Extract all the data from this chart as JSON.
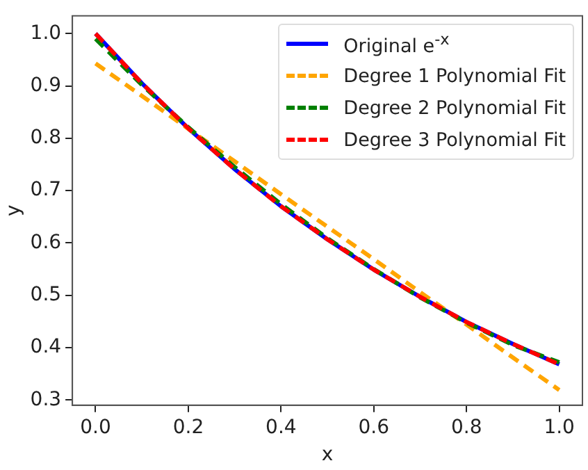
{
  "chart_data": {
    "type": "line",
    "xlabel": "x",
    "ylabel": "y",
    "x": [
      0,
      0.1,
      0.2,
      0.3,
      0.4,
      0.5,
      0.6,
      0.7,
      0.8,
      0.9,
      1.0
    ],
    "series": [
      {
        "name": "Original e$^{-x}$",
        "color": "#0000ff",
        "line_style": "solid",
        "values": [
          1.0,
          0.905,
          0.819,
          0.741,
          0.67,
          0.607,
          0.549,
          0.497,
          0.449,
          0.407,
          0.368
        ]
      },
      {
        "name": "Degree 1 Polynomial Fit",
        "color": "#ffa500",
        "line_style": "dashed",
        "values": [
          0.943,
          0.881,
          0.818,
          0.756,
          0.693,
          0.631,
          0.569,
          0.506,
          0.444,
          0.381,
          0.319
        ]
      },
      {
        "name": "Degree 2 Polynomial Fit",
        "color": "#008000",
        "line_style": "dashed",
        "values": [
          0.99,
          0.902,
          0.821,
          0.745,
          0.674,
          0.609,
          0.55,
          0.496,
          0.448,
          0.405,
          0.372
        ]
      },
      {
        "name": "Degree 3 Polynomial Fit",
        "color": "#ff0000",
        "line_style": "dashed",
        "values": [
          1.0,
          0.905,
          0.819,
          0.741,
          0.67,
          0.607,
          0.549,
          0.497,
          0.449,
          0.407,
          0.368
        ]
      }
    ],
    "xlim": [
      -0.05,
      1.05
    ],
    "xticks": [
      {
        "value": 0,
        "label": "0.0"
      },
      {
        "value": 0.2,
        "label": "0.2"
      },
      {
        "value": 0.4,
        "label": "0.4"
      },
      {
        "value": 0.6,
        "label": "0.6"
      },
      {
        "value": 0.8,
        "label": "0.8"
      },
      {
        "value": 1,
        "label": "1.0"
      }
    ],
    "ylim": [
      0.29,
      1.034
    ],
    "yticks": [
      {
        "value": 0.3,
        "label": "0.3"
      },
      {
        "value": 0.4,
        "label": "0.4"
      },
      {
        "value": 0.5,
        "label": "0.5"
      },
      {
        "value": 0.6,
        "label": "0.6"
      },
      {
        "value": 0.7,
        "label": "0.7"
      },
      {
        "value": 0.8,
        "label": "0.8"
      },
      {
        "value": 0.9,
        "label": "0.9"
      },
      {
        "value": 1,
        "label": "1.0"
      }
    ],
    "grid": false,
    "legend": "top right",
    "marker": "none"
  }
}
